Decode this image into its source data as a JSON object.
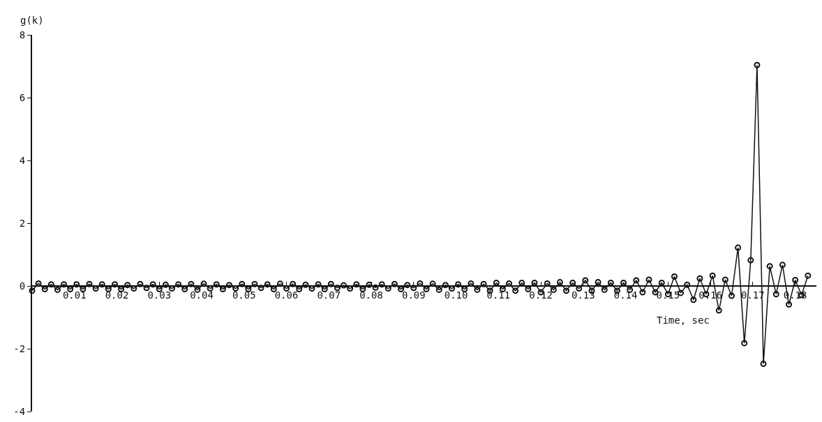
{
  "chart_data": {
    "type": "line",
    "xlabel": "Time, sec",
    "ylabel": "g(k)",
    "marker": "circle",
    "grid": false,
    "legend": false,
    "xlim": [
      0,
      0.185
    ],
    "ylim": [
      -4,
      8
    ],
    "xticks": [
      0.01,
      0.02,
      0.03,
      0.04,
      0.05,
      0.06,
      0.07,
      0.08,
      0.09,
      {
        "value": 0.1,
        "label": "0.10"
      },
      0.11,
      0.12,
      0.13,
      0.14,
      0.15,
      0.16,
      0.17,
      0.18
    ],
    "yticks": [
      -4,
      -2,
      0,
      2,
      4,
      6,
      8
    ],
    "x": [
      0,
      0.0015,
      0.003,
      0.0045,
      0.006,
      0.0075,
      0.009,
      0.0105,
      0.012,
      0.0135,
      0.015,
      0.0165,
      0.018,
      0.0195,
      0.021,
      0.0225,
      0.024,
      0.0255,
      0.027,
      0.0285,
      0.03,
      0.0315,
      0.033,
      0.0345,
      0.036,
      0.0375,
      0.039,
      0.0405,
      0.042,
      0.0435,
      0.045,
      0.0465,
      0.048,
      0.0495,
      0.051,
      0.0525,
      0.054,
      0.0555,
      0.057,
      0.0585,
      0.06,
      0.0615,
      0.063,
      0.0645,
      0.066,
      0.0675,
      0.069,
      0.0705,
      0.072,
      0.0735,
      0.075,
      0.0765,
      0.078,
      0.0795,
      0.081,
      0.0825,
      0.084,
      0.0855,
      0.087,
      0.0885,
      0.09,
      0.0915,
      0.093,
      0.0945,
      0.096,
      0.0975,
      0.099,
      0.1005,
      0.102,
      0.1035,
      0.105,
      0.1065,
      0.108,
      0.1095,
      0.111,
      0.1125,
      0.114,
      0.1155,
      0.117,
      0.1185,
      0.12,
      0.1215,
      0.123,
      0.1245,
      0.126,
      0.1275,
      0.129,
      0.1305,
      0.132,
      0.1335,
      0.135,
      0.1365,
      0.138,
      0.1395,
      0.141,
      0.1425,
      0.144,
      0.1455,
      0.147,
      0.1485,
      0.15,
      0.1515,
      0.153,
      0.1545,
      0.156,
      0.1575,
      0.159,
      0.1605,
      0.162,
      0.1635,
      0.165,
      0.1665,
      0.168,
      0.1695,
      0.171,
      0.1725,
      0.174,
      0.1755,
      0.177,
      0.1785,
      0.18,
      0.1815,
      0.183
    ],
    "series": [
      {
        "color": "#111111",
        "values": [
          -0.15,
          0.08,
          -0.1,
          0.05,
          -0.12,
          0.05,
          -0.1,
          0.05,
          -0.1,
          0.06,
          -0.08,
          0.05,
          -0.1,
          0.05,
          -0.1,
          0.03,
          -0.08,
          0.06,
          -0.06,
          0.05,
          -0.1,
          0.04,
          -0.08,
          0.05,
          -0.1,
          0.06,
          -0.12,
          0.07,
          -0.08,
          0.05,
          -0.1,
          0.03,
          -0.08,
          0.06,
          -0.1,
          0.06,
          -0.06,
          0.05,
          -0.1,
          0.07,
          -0.08,
          0.06,
          -0.1,
          0.04,
          -0.08,
          0.05,
          -0.1,
          0.06,
          -0.06,
          0.02,
          -0.08,
          0.05,
          -0.1,
          0.04,
          -0.05,
          0.05,
          -0.08,
          0.06,
          -0.1,
          0.03,
          -0.06,
          0.08,
          -0.1,
          0.07,
          -0.12,
          0.03,
          -0.08,
          0.05,
          -0.1,
          0.08,
          -0.12,
          0.06,
          -0.15,
          0.1,
          -0.1,
          0.08,
          -0.15,
          0.1,
          -0.1,
          0.1,
          -0.2,
          0.08,
          -0.12,
          0.12,
          -0.15,
          0.1,
          -0.08,
          0.18,
          -0.15,
          0.12,
          -0.12,
          0.1,
          -0.15,
          0.1,
          -0.12,
          0.18,
          -0.2,
          0.2,
          -0.2,
          0.1,
          -0.26,
          0.3,
          -0.22,
          0.04,
          -0.44,
          0.24,
          -0.26,
          0.33,
          -0.78,
          0.2,
          -0.31,
          1.22,
          -1.82,
          0.82,
          7.04,
          -2.48,
          0.63,
          -0.26,
          0.67,
          -0.59,
          0.19,
          -0.29,
          0.33
        ]
      }
    ]
  }
}
